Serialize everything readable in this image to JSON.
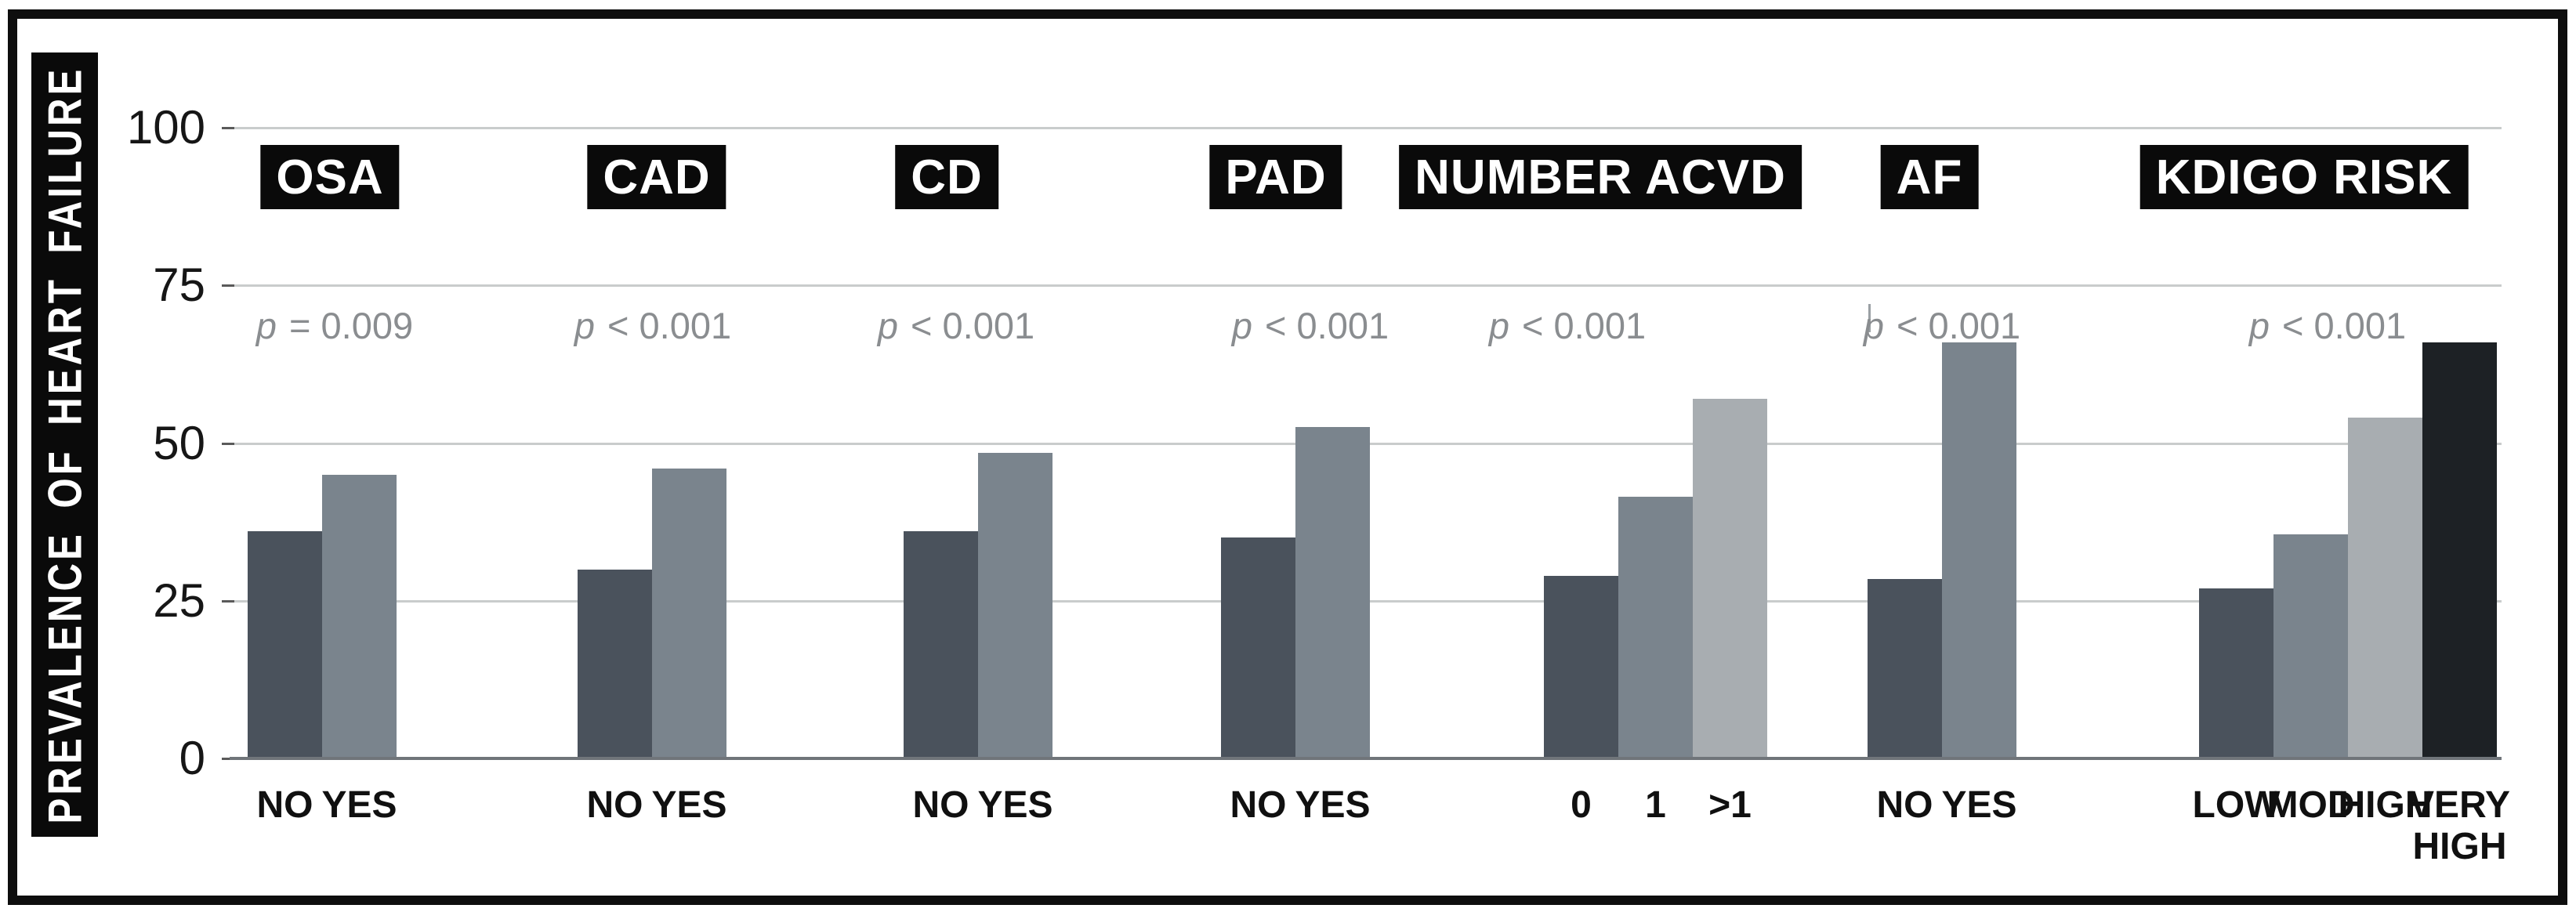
{
  "figure_title": "PREVALENCE OF HEART FAILURE",
  "chart_data": {
    "type": "bar",
    "title": "",
    "xlabel": "",
    "ylabel": "PREVALENCE OF HEART FAILURE",
    "ylim": [
      0,
      100
    ],
    "yticks": [
      0,
      25,
      50,
      75,
      100
    ],
    "grid": "horizontal gridlines at 25/50/75/100",
    "legend": "none",
    "groups": [
      {
        "label": "OSA",
        "p_label": "p = 0.009",
        "categories": [
          "NO",
          "YES"
        ],
        "values": [
          36,
          45
        ],
        "shades": [
          "dark",
          "medium"
        ]
      },
      {
        "label": "CAD",
        "p_label": "p < 0.001",
        "categories": [
          "NO",
          "YES"
        ],
        "values": [
          30,
          46
        ],
        "shades": [
          "dark",
          "medium"
        ]
      },
      {
        "label": "CD",
        "p_label": "p < 0.001",
        "categories": [
          "NO",
          "YES"
        ],
        "values": [
          36,
          48.5
        ],
        "shades": [
          "dark",
          "medium"
        ]
      },
      {
        "label": "PAD",
        "p_label": "p < 0.001",
        "categories": [
          "NO",
          "YES"
        ],
        "values": [
          35,
          52.5
        ],
        "shades": [
          "dark",
          "medium"
        ]
      },
      {
        "label": "NUMBER ACVD",
        "p_label": "p < 0.001",
        "categories": [
          "0",
          "1",
          ">1"
        ],
        "values": [
          29,
          41.5,
          57
        ],
        "shades": [
          "dark",
          "medium",
          "light"
        ]
      },
      {
        "label": "AF",
        "p_label": "p < 0.001",
        "categories": [
          "NO",
          "YES"
        ],
        "values": [
          28.5,
          66
        ],
        "shades": [
          "dark",
          "medium"
        ]
      },
      {
        "label": "KDIGO RISK",
        "p_label": "p < 0.001",
        "categories": [
          "LOW",
          "MOD",
          "HIGH",
          "VERY HIGH"
        ],
        "values": [
          27,
          35.5,
          54,
          66
        ],
        "shades": [
          "dark",
          "medium",
          "light",
          "black"
        ]
      }
    ]
  },
  "colors": {
    "bar_dark": "#4a525c",
    "bar_medium": "#7a848d",
    "bar_light": "#a8adb1",
    "bar_black": "#1d2125",
    "grid_line": "#c9cccc",
    "axis_line": "#70757a",
    "tick_mark": "#5a5a5a",
    "tick_label": "#161616",
    "p_text": "#8a8d90",
    "category_text": "#101010",
    "label_box_bg": "#0a0a0a",
    "label_box_text": "#ffffff",
    "frame": "#0e0e0e"
  }
}
